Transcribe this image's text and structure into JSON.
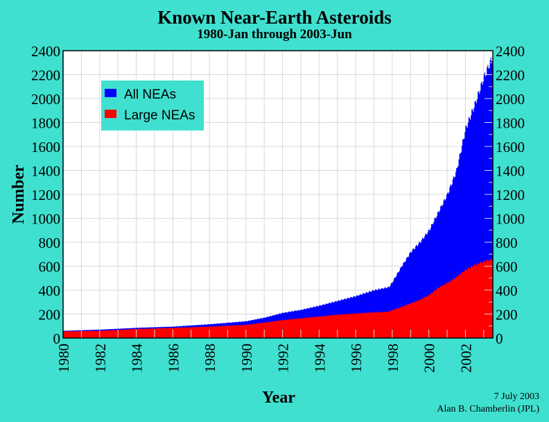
{
  "chart_data": {
    "type": "area",
    "title": "Known Near-Earth Asteroids",
    "subtitle": "1980-Jan through 2003-Jun",
    "xlabel": "Year",
    "ylabel": "Number",
    "xlim": [
      1980,
      2003.5
    ],
    "ylim": [
      0,
      2400
    ],
    "xticks": [
      "1980",
      "1982",
      "1984",
      "1986",
      "1988",
      "1990",
      "1992",
      "1994",
      "1996",
      "1998",
      "2000",
      "2002"
    ],
    "yticks": [
      "0",
      "200",
      "400",
      "600",
      "800",
      "1000",
      "1200",
      "1400",
      "1600",
      "1800",
      "2000",
      "2200",
      "2400"
    ],
    "grid": true,
    "legend_position": "top-left",
    "x": [
      1980,
      1982,
      1984,
      1986,
      1988,
      1990,
      1991,
      1992,
      1993,
      1994,
      1995,
      1996,
      1997,
      1997.8,
      1998,
      1998.5,
      1999,
      1999.5,
      2000,
      2000.5,
      2001,
      2001.5,
      2002,
      2002.5,
      2003,
      2003.5
    ],
    "series": [
      {
        "name": "All NEAs",
        "color": "#0000FF",
        "values": [
          60,
          70,
          85,
          95,
          115,
          140,
          170,
          210,
          235,
          270,
          310,
          350,
          400,
          425,
          470,
          600,
          720,
          800,
          900,
          1050,
          1200,
          1400,
          1750,
          1950,
          2180,
          2360
        ]
      },
      {
        "name": "Large NEAs",
        "color": "#FF0000",
        "values": [
          55,
          60,
          75,
          85,
          95,
          110,
          130,
          150,
          165,
          180,
          195,
          205,
          215,
          220,
          235,
          260,
          290,
          320,
          360,
          420,
          460,
          510,
          570,
          610,
          640,
          660
        ]
      }
    ]
  },
  "credit": {
    "date": "7 July 2003",
    "author": "Alan B. Chamberlin (JPL)"
  }
}
